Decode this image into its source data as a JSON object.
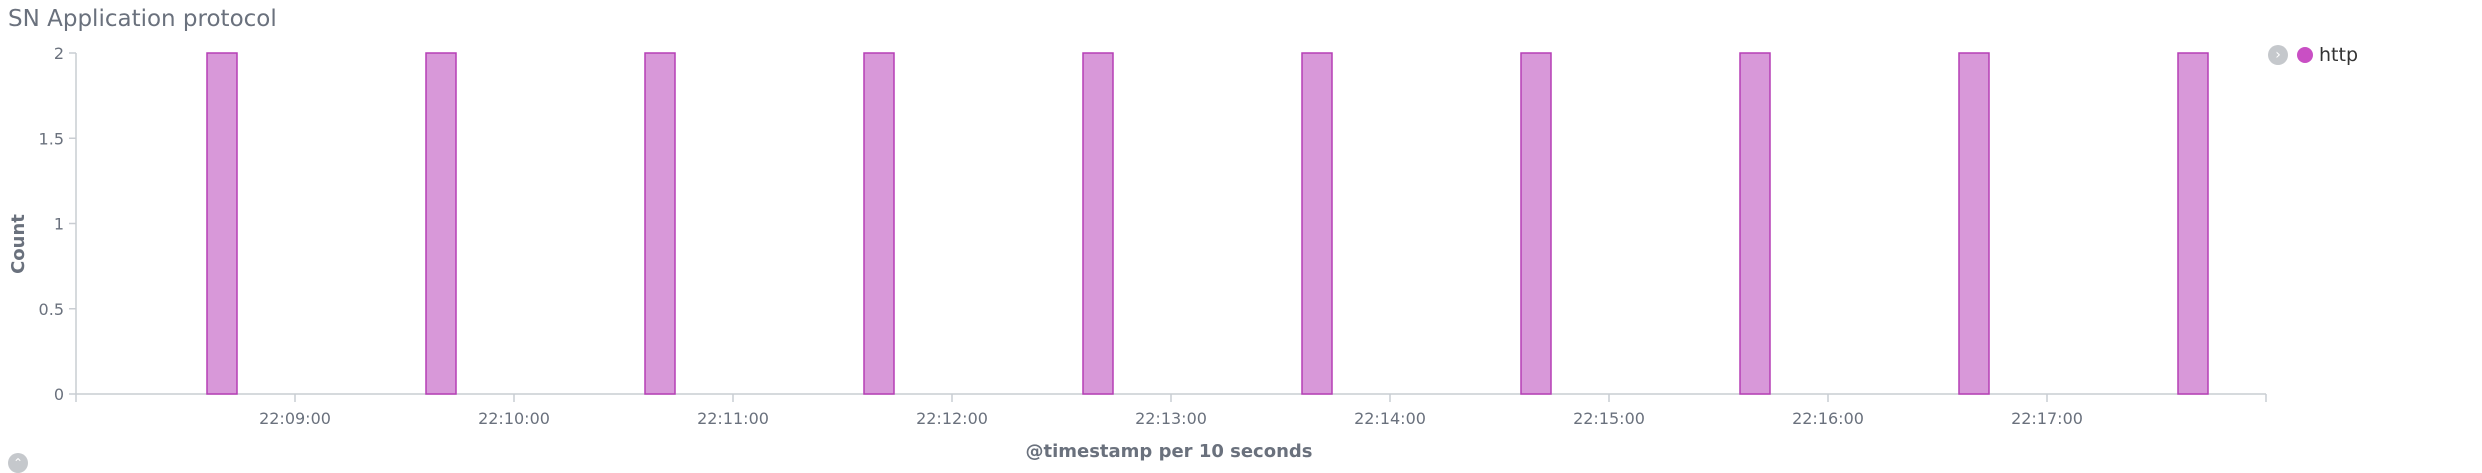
{
  "panel": {
    "title": "SN Application protocol"
  },
  "legend": {
    "toggle_icon": "chevron-right-icon",
    "items": [
      {
        "label": "http",
        "color": "#c94fc4"
      }
    ]
  },
  "collapse_icon": "chevron-up-icon",
  "colors": {
    "bar_fill": "#d898d9",
    "bar_stroke": "#b53fb5",
    "axis": "#c9cdd2"
  },
  "chart_data": {
    "type": "bar",
    "title": "SN Application protocol",
    "xlabel": "@timestamp per 10 seconds",
    "ylabel": "Count",
    "ylim": [
      0,
      2
    ],
    "y_ticks": [
      "0",
      "0.5",
      "1",
      "1.5",
      "2"
    ],
    "x_ticks": [
      "22:09:00",
      "22:10:00",
      "22:11:00",
      "22:12:00",
      "22:13:00",
      "22:14:00",
      "22:15:00",
      "22:16:00",
      "22:17:00"
    ],
    "xlim": [
      "22:08:00",
      "22:18:00"
    ],
    "grid": false,
    "legend_position": "top-right",
    "series": [
      {
        "name": "http",
        "x": [
          "22:08:40",
          "22:09:40",
          "22:10:40",
          "22:11:40",
          "22:12:40",
          "22:13:40",
          "22:14:40",
          "22:15:40",
          "22:16:40",
          "22:17:40"
        ],
        "values": [
          2,
          2,
          2,
          2,
          2,
          2,
          2,
          2,
          2,
          2
        ]
      }
    ]
  }
}
